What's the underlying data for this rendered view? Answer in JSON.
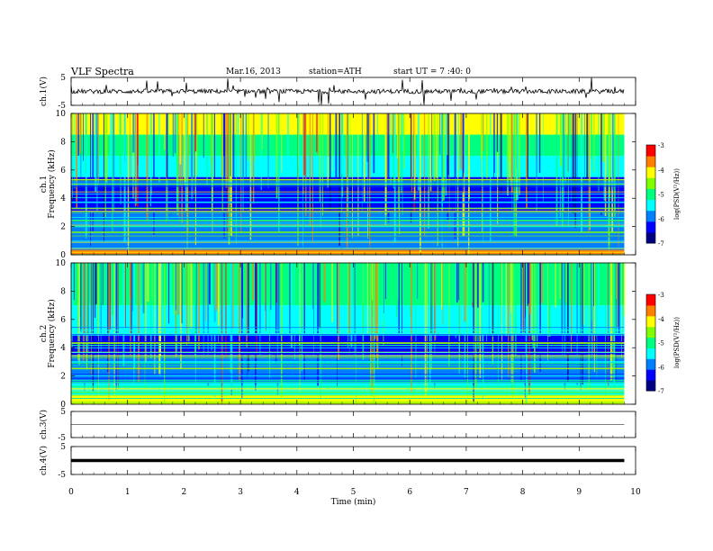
{
  "header": {
    "title": "VLF Spectra",
    "date": "Mar.16, 2013",
    "station": "station=ATH",
    "start": "start UT =  7 :40: 0"
  },
  "chart_data": [
    {
      "type": "line",
      "ylabel": "ch.1(V)",
      "ylim": [
        -5,
        5
      ],
      "yticks": [
        "5",
        "-5"
      ],
      "xlim": [
        0,
        10
      ],
      "description": "noisy waveform around 0 V with spikes to ±5 V",
      "baseline": 0
    },
    {
      "type": "heatmap",
      "channel_label": "ch.1",
      "ylabel": "Frequency (kHz)",
      "ylim": [
        0,
        10
      ],
      "yticks": [
        "0",
        "2",
        "4",
        "6",
        "8",
        "10"
      ],
      "xlim": [
        0,
        10
      ],
      "data_end_min": 9.8,
      "colorbar": {
        "label": "log(PSD(V²/Hz))",
        "range": [
          -7,
          -3
        ],
        "ticks": [
          "-3",
          "-4",
          "-5",
          "-6",
          "-7"
        ]
      },
      "bands": [
        {
          "from": 0,
          "to": 0.5,
          "level": -3.6
        },
        {
          "from": 0.5,
          "to": 1.5,
          "level": -5.8
        },
        {
          "from": 1.5,
          "to": 3.0,
          "level": -6.2
        },
        {
          "from": 3.0,
          "to": 5.5,
          "level": -6.6
        },
        {
          "from": 5.5,
          "to": 7.0,
          "level": -5.6
        },
        {
          "from": 7.0,
          "to": 8.5,
          "level": -4.9
        },
        {
          "from": 8.5,
          "to": 10.0,
          "level": -4.2
        }
      ]
    },
    {
      "type": "heatmap",
      "channel_label": "ch.2",
      "ylabel": "Frequency (kHz)",
      "ylim": [
        0,
        10
      ],
      "yticks": [
        "0",
        "2",
        "4",
        "6",
        "8",
        "10"
      ],
      "xlim": [
        0,
        10
      ],
      "data_end_min": 9.8,
      "colorbar": {
        "label": "log(PSD(V²/Hz))",
        "range": [
          -7,
          -3
        ],
        "ticks": [
          "-3",
          "-4",
          "-5",
          "-6",
          "-7"
        ]
      },
      "bands": [
        {
          "from": 0,
          "to": 0.6,
          "level": -3.8
        },
        {
          "from": 0.6,
          "to": 1.5,
          "level": -5.4
        },
        {
          "from": 1.5,
          "to": 3.5,
          "level": -6.0
        },
        {
          "from": 3.5,
          "to": 5.0,
          "level": -6.3
        },
        {
          "from": 5.0,
          "to": 7.0,
          "level": -5.4
        },
        {
          "from": 7.0,
          "to": 10.0,
          "level": -5.2
        }
      ]
    },
    {
      "type": "line",
      "ylabel": "ch.3(V)",
      "ylim": [
        -5,
        5
      ],
      "yticks": [
        "5",
        "-5"
      ],
      "xlim": [
        0,
        10
      ],
      "baseline": 0
    },
    {
      "type": "line",
      "ylabel": "ch.4(V)",
      "ylim": [
        -5,
        5
      ],
      "yticks": [
        "5",
        "-5"
      ],
      "xlim": [
        0,
        10
      ],
      "baseline": 0
    }
  ],
  "xaxis": {
    "label": "Time  (min)",
    "ticks": [
      "0",
      "1",
      "2",
      "3",
      "4",
      "5",
      "6",
      "7",
      "8",
      "9",
      "10"
    ]
  },
  "colors": {
    "scale": [
      "#000080",
      "#0000ff",
      "#0080ff",
      "#00ffff",
      "#00ff80",
      "#80ff00",
      "#ffff00",
      "#ff8000",
      "#ff0000",
      "#ffffff"
    ]
  }
}
